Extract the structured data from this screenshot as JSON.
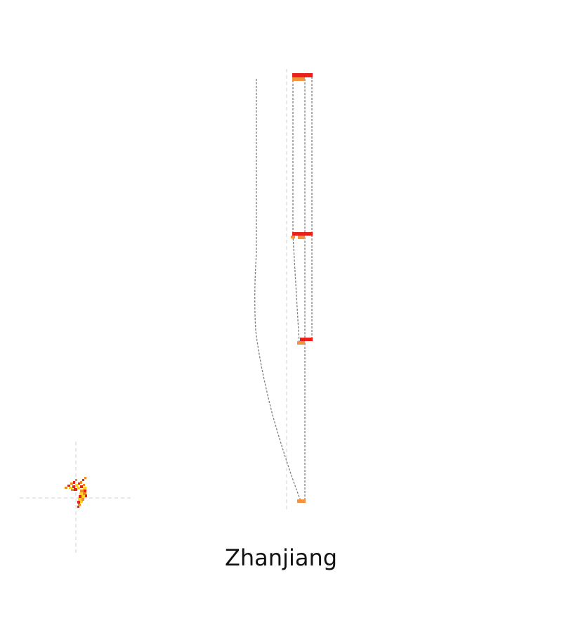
{
  "map": {
    "title": "Zhanjiang",
    "colors": {
      "route_line": "#7f7f7f",
      "guide_line": "#d0d0d0",
      "marker_primary": "#e8211b",
      "marker_secondary": "#f5923e",
      "inset_yellow": "#ffd21f",
      "inset_red": "#e8211b",
      "inset_orange": "#f08a24"
    }
  }
}
